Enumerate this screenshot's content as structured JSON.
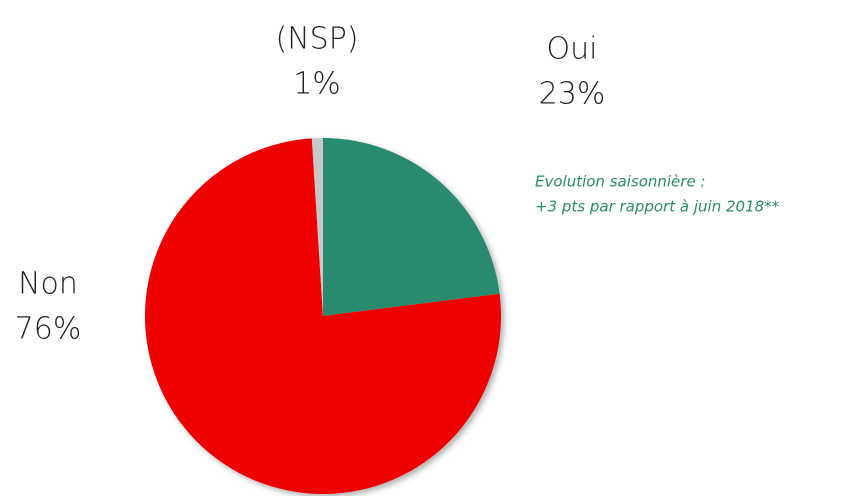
{
  "chart_data": {
    "type": "pie",
    "categories": [
      "Oui",
      "Non",
      "(NSP)"
    ],
    "values": [
      23,
      76,
      1
    ],
    "value_labels": [
      "23%",
      "76%",
      "1%"
    ],
    "colors": [
      "#2a8a70",
      "#ee0000",
      "#c8c8c8"
    ],
    "annotations": [
      "Evolution saisonnière :",
      "+3 pts par rapport à juin 2018**"
    ],
    "annotation_color": "#2a8a70"
  }
}
